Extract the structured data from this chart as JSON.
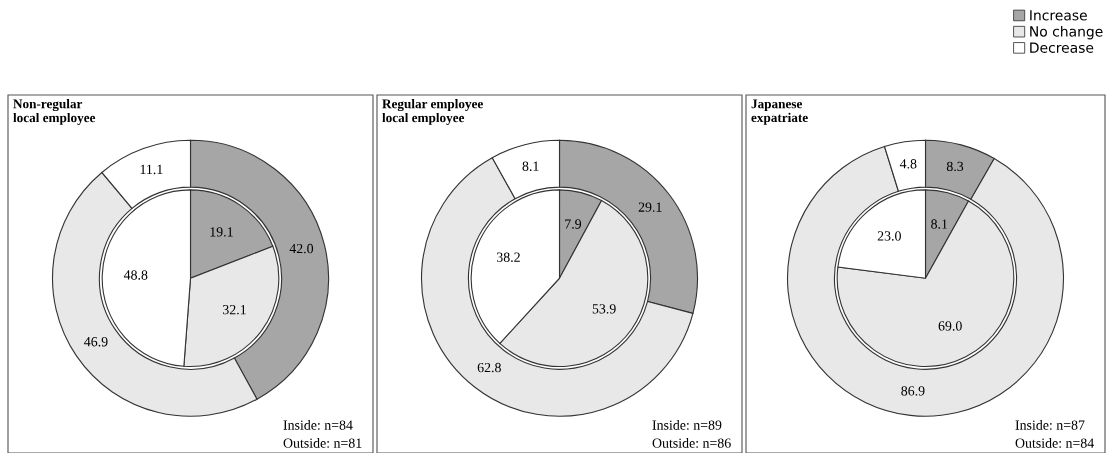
{
  "chart_data": [
    {
      "type": "donut",
      "title": "Non-regular\nlocal employee",
      "categories": [
        "Increase",
        "No change",
        "Decrease"
      ],
      "colors": [
        "#a6a6a6",
        "#e8e8e8",
        "#ffffff"
      ],
      "series": [
        {
          "type": "pie",
          "values": [
            19.1,
            32.1,
            48.8
          ],
          "value_labels": [
            "19.1",
            "32.1",
            "48.8"
          ]
        },
        {
          "values": [
            42.0,
            46.9,
            11.1
          ],
          "value_labels": [
            "42.0",
            "46.9",
            "11.1"
          ]
        }
      ],
      "legend": "top right",
      "annotations": [
        "Inside: n=84",
        "Outside: n=81"
      ]
    },
    {
      "type": "donut",
      "title": "Regular employee\nlocal employee",
      "colors": [
        "#a6a6a6",
        "#e8e8e8",
        "#ffffff"
      ],
      "series": [
        {
          "type": "pie",
          "values": [
            7.9,
            53.9,
            38.2
          ],
          "value_labels": [
            "7.9",
            "53.9",
            "38.2"
          ]
        },
        {
          "values": [
            29.1,
            62.8,
            8.1
          ],
          "value_labels": [
            "29.1",
            "62.8",
            "8.1"
          ]
        }
      ],
      "annotations": [
        "Inside: n=89",
        "Outside: n=86"
      ]
    },
    {
      "type": "donut",
      "title": "Japanese\nexpatriate",
      "colors": [
        "#a6a6a6",
        "#e8e8e8",
        "#ffffff"
      ],
      "series": [
        {
          "type": "pie",
          "values": [
            8.1,
            69.0,
            23.0
          ],
          "value_labels": [
            "8.1",
            "69.0",
            "23.0"
          ]
        },
        {
          "values": [
            8.3,
            86.9,
            4.8
          ],
          "value_labels": [
            "8.3",
            "86.9",
            "4.8"
          ]
        }
      ],
      "annotations": [
        "Inside: n=87",
        "Outside: n=84"
      ]
    }
  ]
}
